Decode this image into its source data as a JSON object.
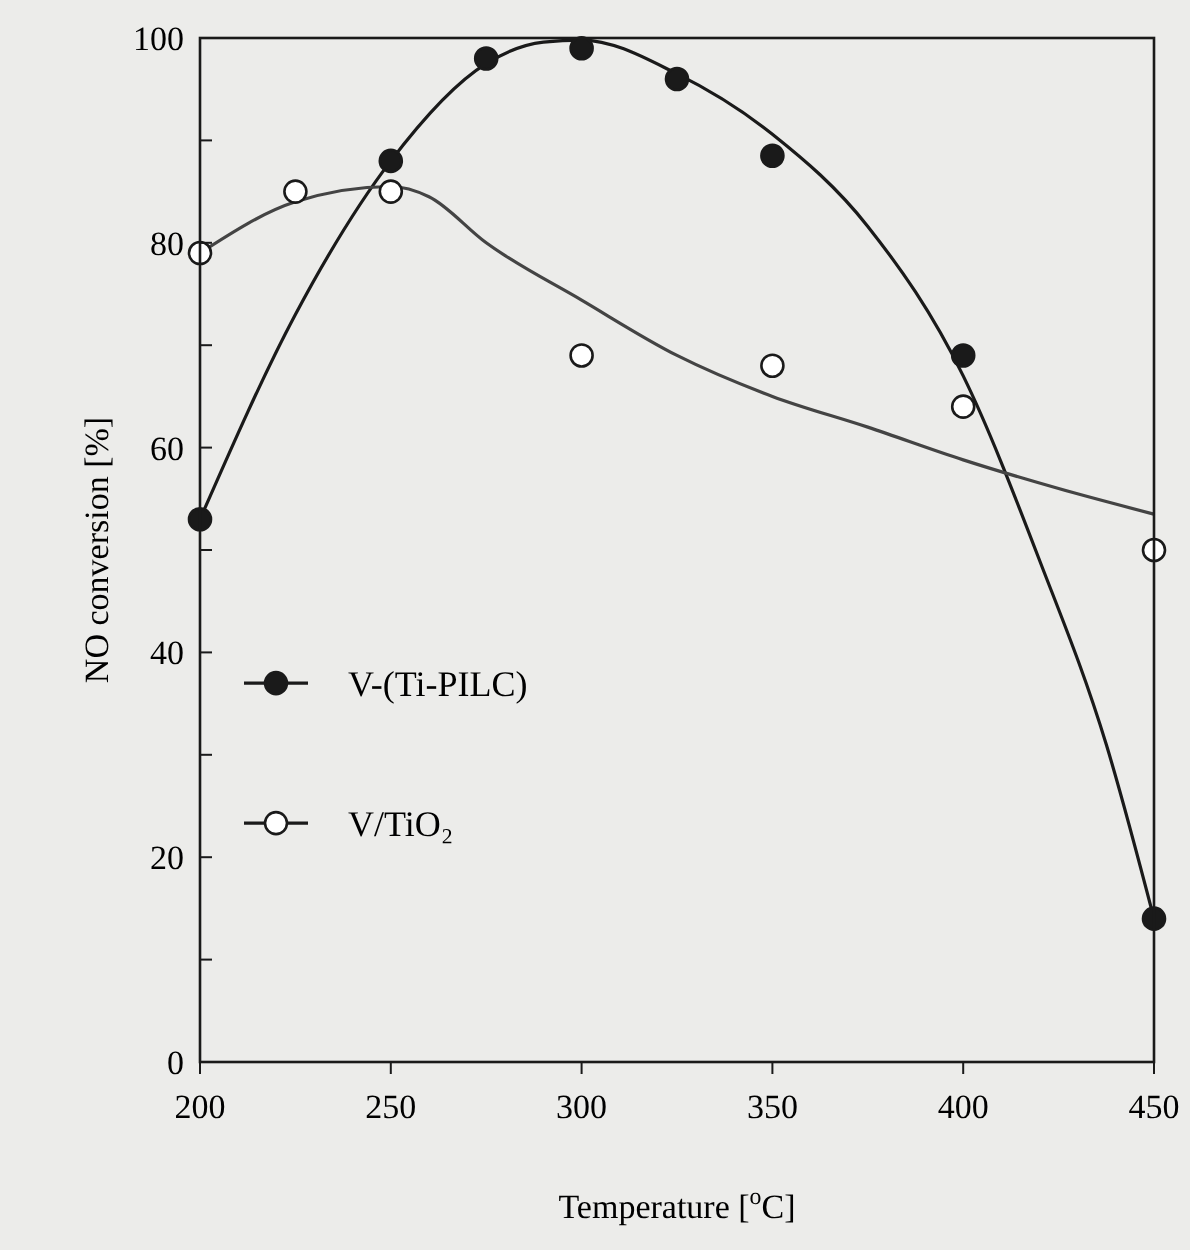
{
  "chart_data": {
    "type": "scatter",
    "xlabel": "Temperature [$^{o}$C]",
    "ylabel": "NO conversion [%]",
    "xlim": [
      200,
      450
    ],
    "xticks": [
      200,
      250,
      300,
      350,
      400,
      450
    ],
    "ylim": [
      0,
      100
    ],
    "yticks": [
      0,
      {
        "value": 10,
        "label": null
      },
      20,
      {
        "value": 30,
        "label": null
      },
      40,
      {
        "value": 50,
        "label": null
      },
      60,
      {
        "value": 70,
        "label": null
      },
      80,
      {
        "value": 90,
        "label": null
      },
      100
    ],
    "grid": false,
    "legend": "left",
    "series": [
      {
        "name": "V-(Ti-PILC)",
        "marker": "circle",
        "color": "#1a1a1a",
        "x": [
          200,
          250,
          275,
          300,
          325,
          350,
          400,
          450
        ],
        "values": [
          53,
          88,
          98,
          99,
          96,
          88.5,
          69,
          14
        ]
      },
      {
        "name": "V/TiO₂",
        "marker": "circle",
        "color": "#ffffff",
        "x": [
          200,
          225,
          250,
          300,
          350,
          400,
          450
        ],
        "values": [
          79,
          85,
          85,
          69,
          68,
          64,
          50
        ]
      },
      {
        "type": "line",
        "marker": "none",
        "color": "#1a1a1a",
        "x": [
          200,
          225,
          250,
          275,
          290,
          300,
          325,
          350,
          375,
          400,
          420,
          437.5,
          450
        ],
        "values": [
          53,
          73,
          88,
          97.5,
          99.6,
          99.8,
          96.5,
          90.6,
          81.6,
          67,
          49,
          31,
          14
        ]
      },
      {
        "type": "line",
        "marker": "none",
        "color": "#444444",
        "x": [
          200,
          225,
          250,
          260,
          275,
          300,
          325,
          350,
          375,
          400,
          425,
          450
        ],
        "values": [
          79,
          84,
          85.5,
          84.5,
          80,
          74.4,
          69,
          65,
          62,
          58.8,
          56,
          53.5
        ]
      }
    ]
  }
}
